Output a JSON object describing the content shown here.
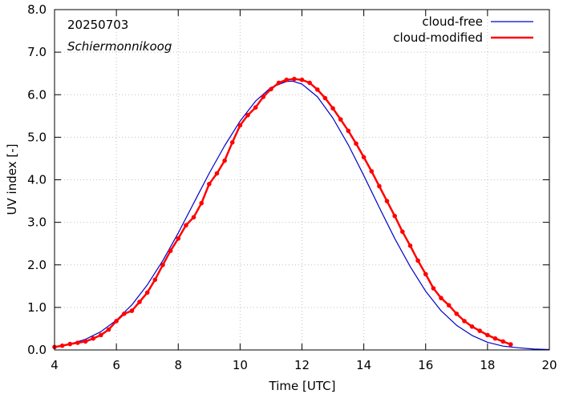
{
  "chart_data": {
    "type": "line",
    "title": "",
    "annotations": [
      "20250703",
      "Schiermonnikoog"
    ],
    "xlabel": "Time  [UTC]",
    "ylabel": "UV index  [-]",
    "xlim": [
      4,
      20
    ],
    "ylim": [
      0,
      8
    ],
    "xticks": [
      4,
      6,
      8,
      10,
      12,
      14,
      16,
      18,
      20
    ],
    "xtick_labels": [
      "4",
      "6",
      "8",
      "10",
      "12",
      "14",
      "16",
      "18",
      "20"
    ],
    "yticks": [
      0,
      1,
      2,
      3,
      4,
      5,
      6,
      7,
      8
    ],
    "ytick_labels": [
      "0.0",
      "1.0",
      "2.0",
      "3.0",
      "4.0",
      "5.0",
      "6.0",
      "7.0",
      "8.0"
    ],
    "grid": true,
    "legend_position": "top-right",
    "series": [
      {
        "name": "cloud-free",
        "color": "#0000cc",
        "markers": false,
        "x": [
          4.0,
          4.5,
          5.0,
          5.5,
          6.0,
          6.5,
          7.0,
          7.5,
          8.0,
          8.5,
          9.0,
          9.5,
          10.0,
          10.5,
          11.0,
          11.5,
          11.7,
          12.0,
          12.5,
          13.0,
          13.5,
          14.0,
          14.5,
          15.0,
          15.5,
          16.0,
          16.5,
          17.0,
          17.5,
          18.0,
          18.5,
          19.0,
          19.5,
          20.0
        ],
        "y": [
          0.07,
          0.14,
          0.25,
          0.43,
          0.7,
          1.06,
          1.53,
          2.1,
          2.75,
          3.45,
          4.15,
          4.8,
          5.38,
          5.85,
          6.17,
          6.31,
          6.32,
          6.25,
          5.95,
          5.45,
          4.82,
          4.1,
          3.35,
          2.62,
          1.96,
          1.38,
          0.92,
          0.58,
          0.34,
          0.18,
          0.09,
          0.05,
          0.02,
          0.01
        ]
      },
      {
        "name": "cloud-modified",
        "color": "#ff0000",
        "markers": true,
        "x": [
          4.0,
          4.25,
          4.5,
          4.75,
          5.0,
          5.25,
          5.5,
          5.75,
          6.0,
          6.25,
          6.5,
          6.75,
          7.0,
          7.25,
          7.5,
          7.75,
          8.0,
          8.25,
          8.5,
          8.75,
          9.0,
          9.25,
          9.5,
          9.75,
          10.0,
          10.25,
          10.5,
          10.75,
          11.0,
          11.25,
          11.5,
          11.75,
          12.0,
          12.25,
          12.5,
          12.75,
          13.0,
          13.25,
          13.5,
          13.75,
          14.0,
          14.25,
          14.5,
          14.75,
          15.0,
          15.25,
          15.5,
          15.75,
          16.0,
          16.25,
          16.5,
          16.75,
          17.0,
          17.25,
          17.5,
          17.75,
          18.0,
          18.25,
          18.5,
          18.75
        ],
        "y": [
          0.07,
          0.1,
          0.14,
          0.17,
          0.2,
          0.27,
          0.35,
          0.48,
          0.68,
          0.85,
          0.92,
          1.13,
          1.35,
          1.65,
          2.0,
          2.33,
          2.62,
          2.93,
          3.12,
          3.45,
          3.9,
          4.15,
          4.45,
          4.88,
          5.28,
          5.52,
          5.7,
          5.95,
          6.13,
          6.28,
          6.35,
          6.37,
          6.35,
          6.28,
          6.12,
          5.92,
          5.68,
          5.42,
          5.15,
          4.85,
          4.53,
          4.2,
          3.85,
          3.5,
          3.15,
          2.78,
          2.45,
          2.1,
          1.78,
          1.45,
          1.22,
          1.05,
          0.85,
          0.68,
          0.55,
          0.45,
          0.35,
          0.27,
          0.2,
          0.13
        ]
      }
    ]
  }
}
